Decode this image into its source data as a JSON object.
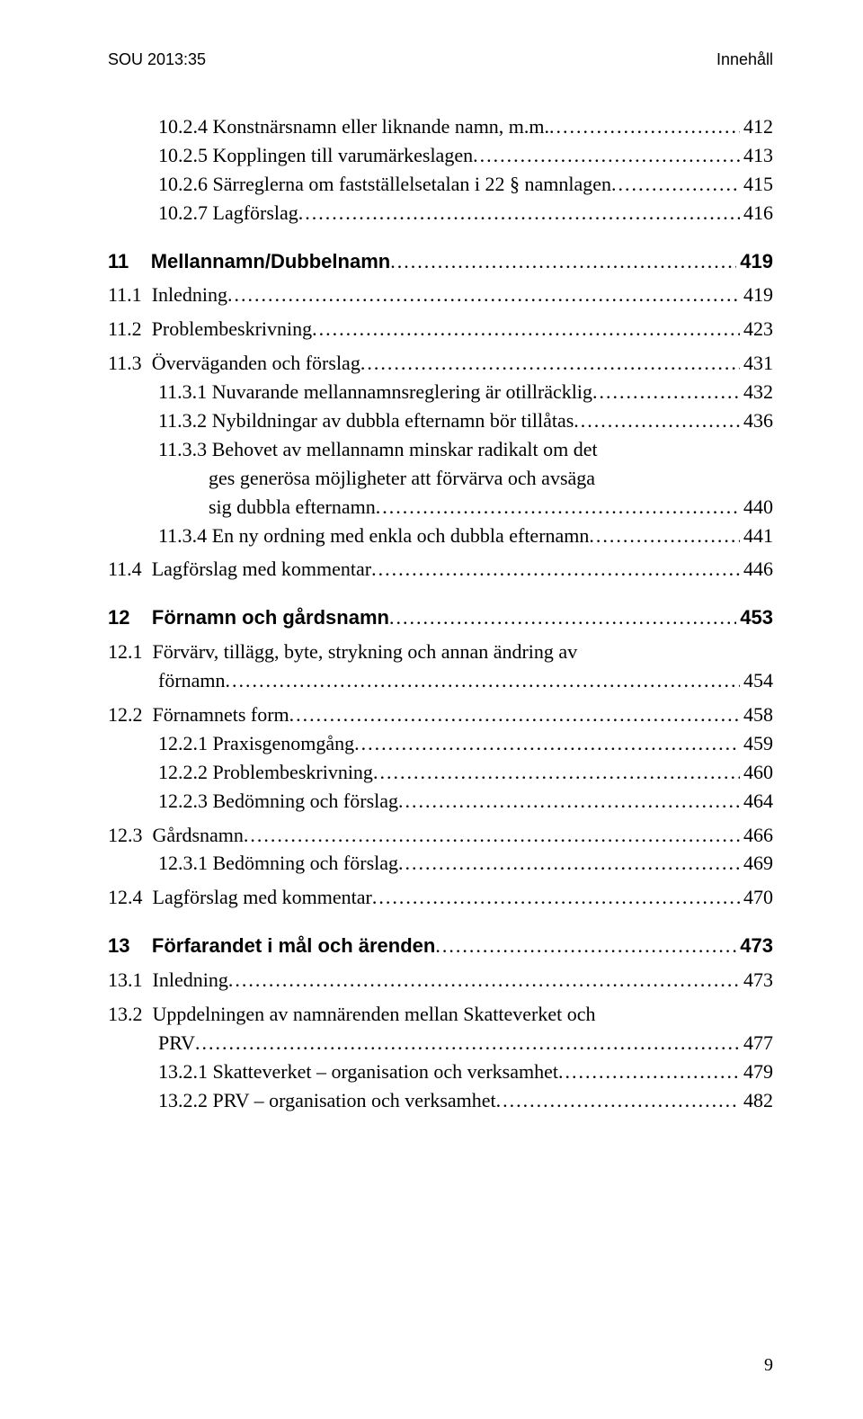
{
  "header": {
    "left": "SOU 2013:35",
    "right": "Innehåll"
  },
  "page_number": "9",
  "entries": [
    {
      "type": "row",
      "bold": false,
      "indent": 1,
      "num": "10.2.4 ",
      "label": "Konstnärsnamn eller liknande namn, m.m.",
      "page": "412"
    },
    {
      "type": "row",
      "bold": false,
      "indent": 1,
      "num": "10.2.5 ",
      "label": "Kopplingen till varumärkeslagen",
      "page": "413"
    },
    {
      "type": "row",
      "bold": false,
      "indent": 1,
      "num": "10.2.6 ",
      "label": "Särreglerna om fastställelsetalan i 22 § namnlagen",
      "page": "415"
    },
    {
      "type": "row",
      "bold": false,
      "indent": 1,
      "num": "10.2.7 ",
      "label": "Lagförslag",
      "page": "416"
    },
    {
      "type": "gap",
      "size": "md"
    },
    {
      "type": "row",
      "bold": true,
      "indent": 0,
      "num": "11    ",
      "label": "Mellannamn/Dubbelnamn",
      "page": "419"
    },
    {
      "type": "gap",
      "size": "sm"
    },
    {
      "type": "row",
      "bold": false,
      "indent": 0,
      "num": "11.1  ",
      "label": "Inledning",
      "page": "419"
    },
    {
      "type": "gap",
      "size": "sm"
    },
    {
      "type": "row",
      "bold": false,
      "indent": 0,
      "num": "11.2  ",
      "label": "Problembeskrivning",
      "page": "423"
    },
    {
      "type": "gap",
      "size": "sm"
    },
    {
      "type": "row",
      "bold": false,
      "indent": 0,
      "num": "11.3  ",
      "label": "Överväganden och förslag",
      "page": "431"
    },
    {
      "type": "row",
      "bold": false,
      "indent": 1,
      "num": "11.3.1 ",
      "label": "Nuvarande mellannamnsreglering är otillräcklig",
      "page": "432"
    },
    {
      "type": "row",
      "bold": false,
      "indent": 1,
      "num": "11.3.2 ",
      "label": "Nybildningar av dubbla efternamn bör tillåtas",
      "page": "436"
    },
    {
      "type": "wrap",
      "indent": 1,
      "num": "11.3.3 ",
      "lines": [
        "Behovet av mellannamn minskar radikalt om det",
        "ges generösa möjligheter att förvärva och avsäga"
      ],
      "last": "sig dubbla efternamn",
      "page": "440"
    },
    {
      "type": "row",
      "bold": false,
      "indent": 1,
      "num": "11.3.4 ",
      "label": "En ny ordning med enkla och dubbla efternamn",
      "page": "441"
    },
    {
      "type": "gap",
      "size": "sm"
    },
    {
      "type": "row",
      "bold": false,
      "indent": 0,
      "num": "11.4  ",
      "label": "Lagförslag med kommentar",
      "page": "446"
    },
    {
      "type": "gap",
      "size": "md"
    },
    {
      "type": "row",
      "bold": true,
      "indent": 0,
      "num": "12    ",
      "label": "Förnamn och gårdsnamn",
      "page": "453"
    },
    {
      "type": "gap",
      "size": "sm"
    },
    {
      "type": "wrap",
      "indent": 0,
      "num": "12.1  ",
      "lines": [
        "Förvärv, tillägg, byte, strykning och annan ändring av"
      ],
      "last": "förnamn",
      "page": "454"
    },
    {
      "type": "gap",
      "size": "sm"
    },
    {
      "type": "row",
      "bold": false,
      "indent": 0,
      "num": "12.2  ",
      "label": "Förnamnets form",
      "page": "458"
    },
    {
      "type": "row",
      "bold": false,
      "indent": 1,
      "num": "12.2.1 ",
      "label": "Praxisgenomgång",
      "page": "459"
    },
    {
      "type": "row",
      "bold": false,
      "indent": 1,
      "num": "12.2.2 ",
      "label": "Problembeskrivning",
      "page": "460"
    },
    {
      "type": "row",
      "bold": false,
      "indent": 1,
      "num": "12.2.3 ",
      "label": "Bedömning och förslag",
      "page": "464"
    },
    {
      "type": "gap",
      "size": "sm"
    },
    {
      "type": "row",
      "bold": false,
      "indent": 0,
      "num": "12.3  ",
      "label": "Gårdsnamn",
      "page": "466"
    },
    {
      "type": "row",
      "bold": false,
      "indent": 1,
      "num": "12.3.1 ",
      "label": "Bedömning och förslag",
      "page": "469"
    },
    {
      "type": "gap",
      "size": "sm"
    },
    {
      "type": "row",
      "bold": false,
      "indent": 0,
      "num": "12.4  ",
      "label": "Lagförslag med kommentar",
      "page": "470"
    },
    {
      "type": "gap",
      "size": "md"
    },
    {
      "type": "row",
      "bold": true,
      "indent": 0,
      "num": "13    ",
      "label": "Förfarandet i mål och ärenden",
      "page": "473"
    },
    {
      "type": "gap",
      "size": "sm"
    },
    {
      "type": "row",
      "bold": false,
      "indent": 0,
      "num": "13.1  ",
      "label": "Inledning",
      "page": "473"
    },
    {
      "type": "gap",
      "size": "sm"
    },
    {
      "type": "wrap",
      "indent": 0,
      "num": "13.2  ",
      "lines": [
        "Uppdelningen av namnärenden mellan Skatteverket och"
      ],
      "last": "PRV",
      "page": "477"
    },
    {
      "type": "row",
      "bold": false,
      "indent": 1,
      "num": "13.2.1 ",
      "label": "Skatteverket – organisation och verksamhet",
      "page": "479"
    },
    {
      "type": "row",
      "bold": false,
      "indent": 1,
      "num": "13.2.2 ",
      "label": "PRV – organisation och verksamhet",
      "page": "482"
    }
  ]
}
